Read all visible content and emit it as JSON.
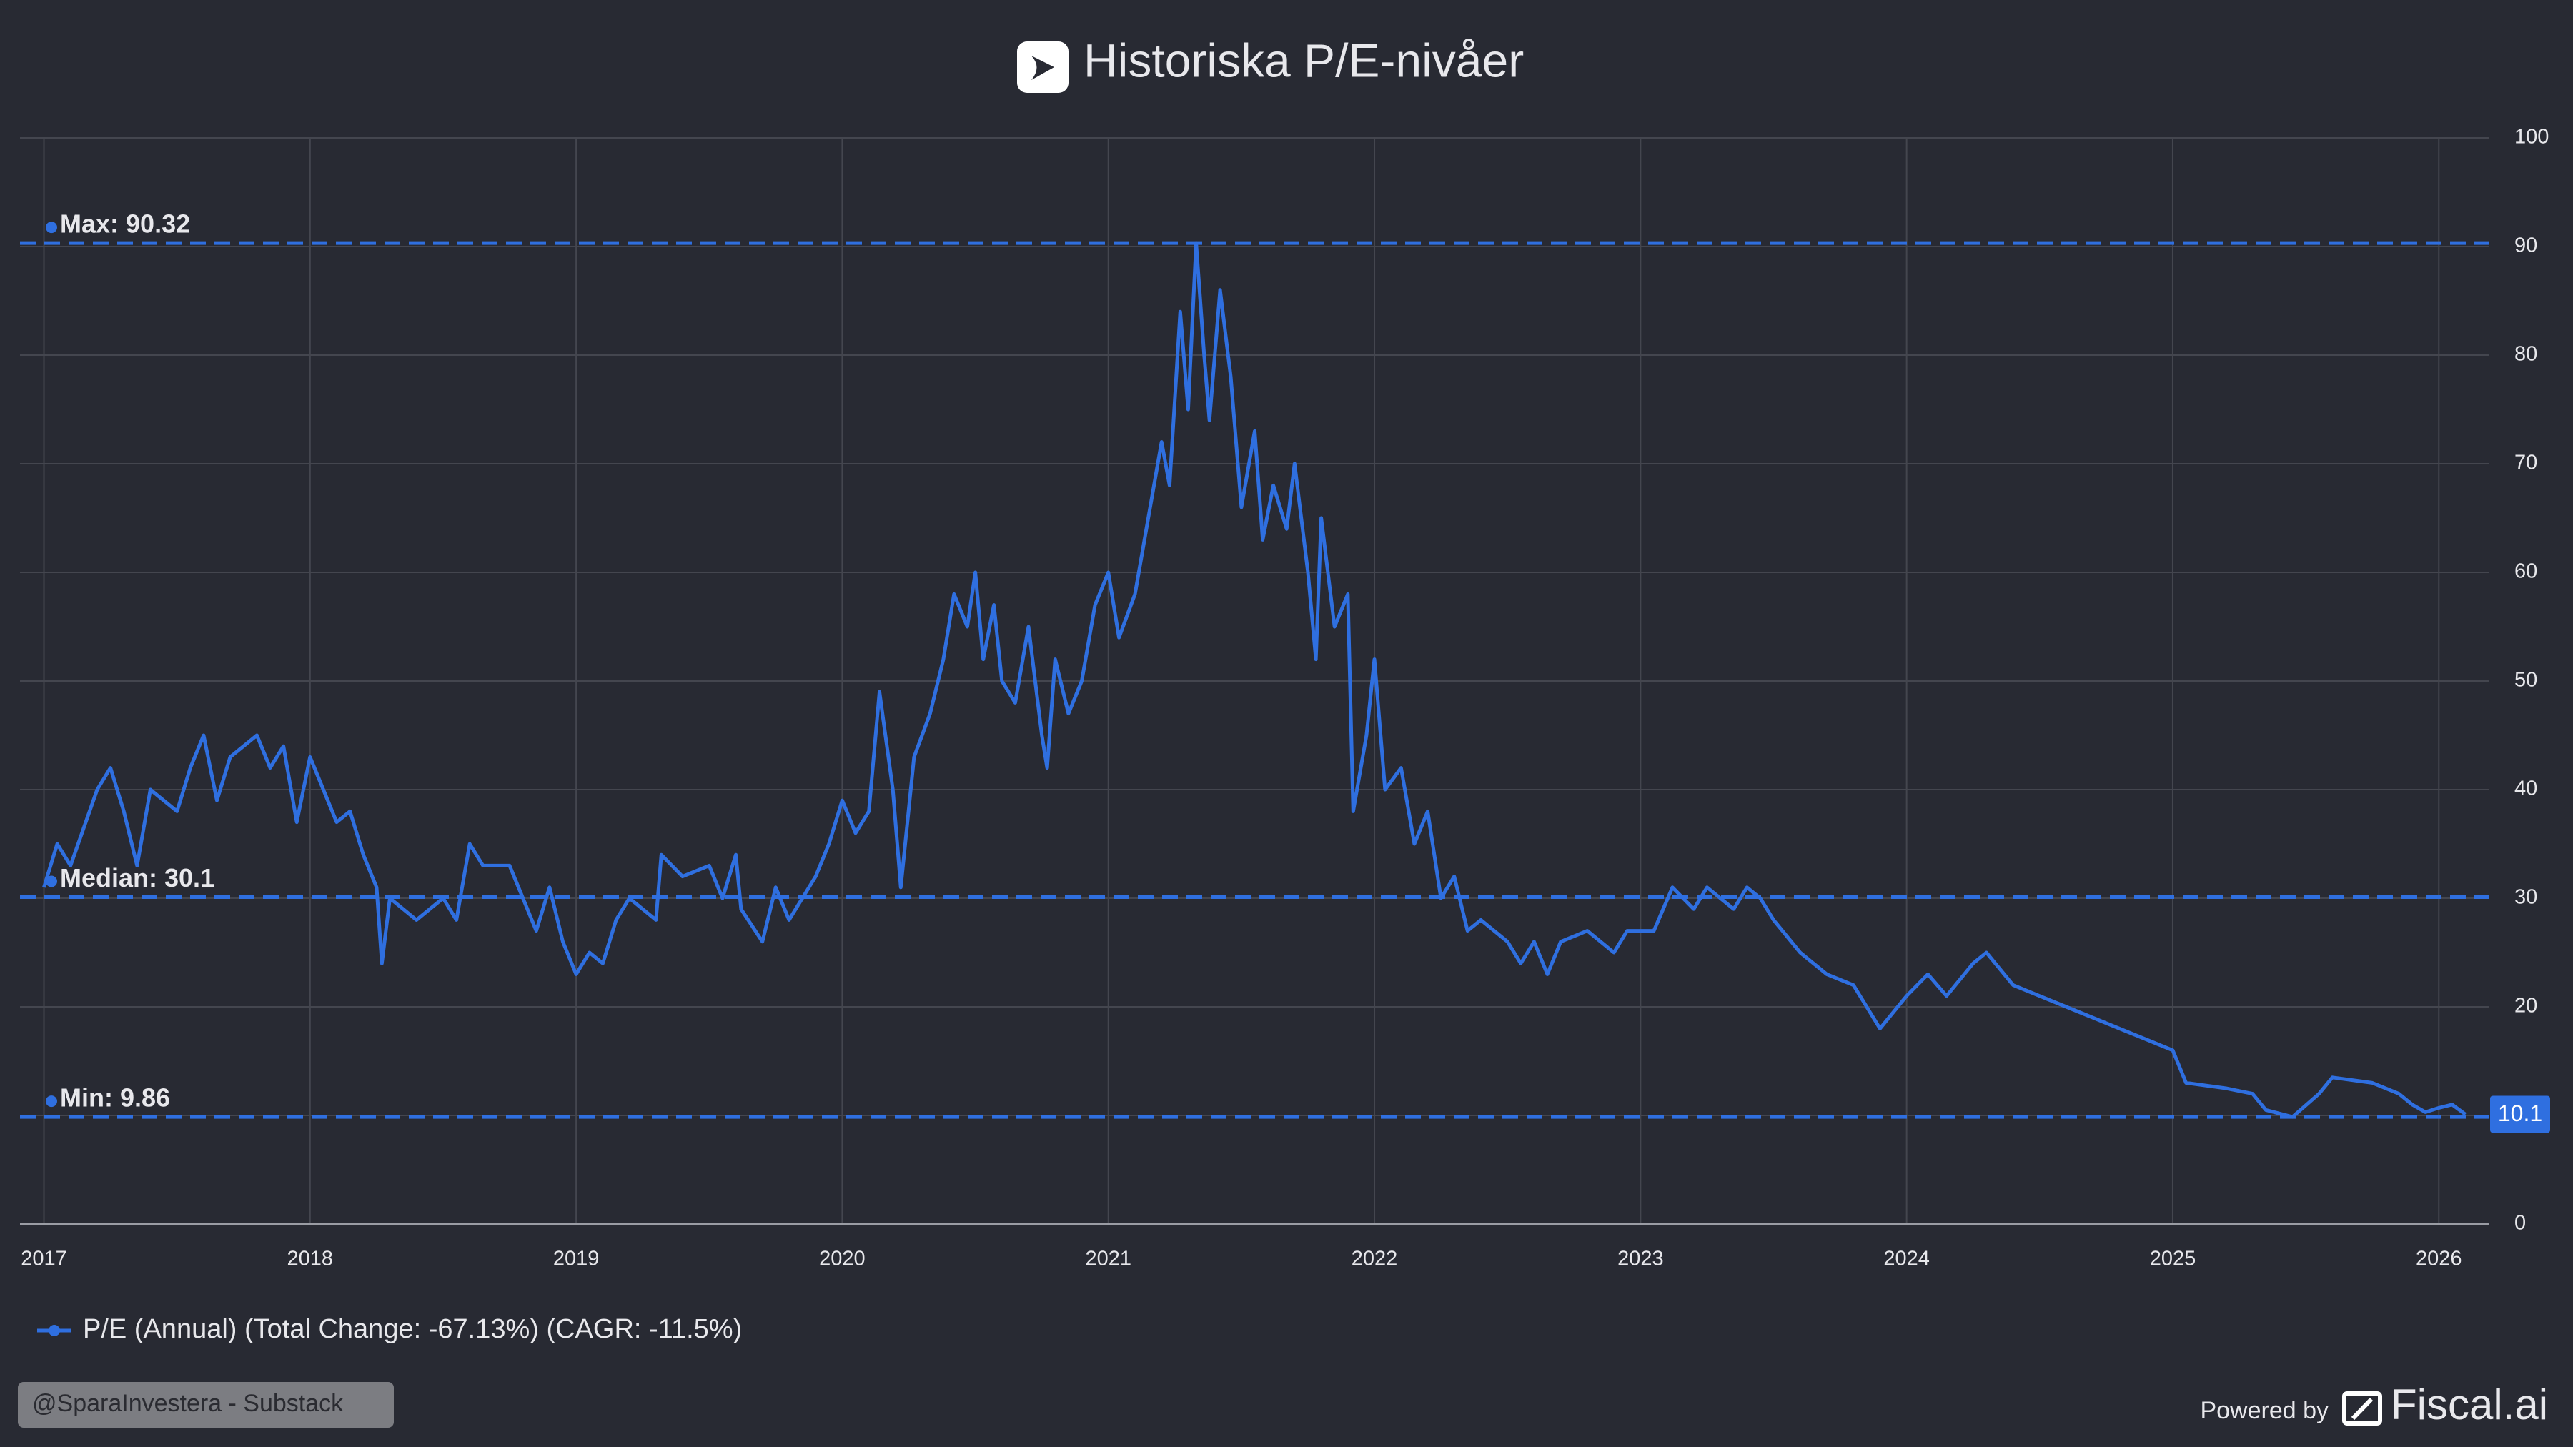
{
  "chart_data": {
    "type": "line",
    "title": "Historiska P/E-nivåer",
    "x": [
      2017.0,
      2017.05,
      2017.1,
      2017.2,
      2017.25,
      2017.3,
      2017.35,
      2017.4,
      2017.5,
      2017.55,
      2017.6,
      2017.65,
      2017.7,
      2017.8,
      2017.85,
      2017.9,
      2017.95,
      2018.0,
      2018.05,
      2018.1,
      2018.15,
      2018.2,
      2018.25,
      2018.27,
      2018.3,
      2018.4,
      2018.5,
      2018.55,
      2018.6,
      2018.65,
      2018.75,
      2018.8,
      2018.85,
      2018.9,
      2018.95,
      2019.0,
      2019.05,
      2019.1,
      2019.15,
      2019.2,
      2019.3,
      2019.32,
      2019.4,
      2019.5,
      2019.55,
      2019.6,
      2019.62,
      2019.7,
      2019.75,
      2019.8,
      2019.85,
      2019.9,
      2019.95,
      2020.0,
      2020.05,
      2020.1,
      2020.14,
      2020.19,
      2020.22,
      2020.27,
      2020.33,
      2020.38,
      2020.42,
      2020.47,
      2020.5,
      2020.53,
      2020.57,
      2020.6,
      2020.65,
      2020.7,
      2020.75,
      2020.77,
      2020.8,
      2020.85,
      2020.9,
      2020.95,
      2021.0,
      2021.04,
      2021.1,
      2021.15,
      2021.2,
      2021.23,
      2021.27,
      2021.3,
      2021.33,
      2021.36,
      2021.38,
      2021.42,
      2021.46,
      2021.5,
      2021.55,
      2021.58,
      2021.62,
      2021.67,
      2021.7,
      2021.75,
      2021.78,
      2021.8,
      2021.85,
      2021.9,
      2021.92,
      2021.97,
      2022.0,
      2022.04,
      2022.1,
      2022.15,
      2022.2,
      2022.25,
      2022.3,
      2022.35,
      2022.4,
      2022.5,
      2022.55,
      2022.6,
      2022.65,
      2022.7,
      2022.8,
      2022.9,
      2022.95,
      2023.05,
      2023.12,
      2023.2,
      2023.25,
      2023.35,
      2023.4,
      2023.45,
      2023.5,
      2023.6,
      2023.7,
      2023.8,
      2023.85,
      2023.9,
      2024.0,
      2024.08,
      2024.15,
      2024.25,
      2024.3,
      2024.4,
      2024.5,
      2024.6,
      2024.7,
      2024.8,
      2024.9,
      2025.0,
      2025.05,
      2025.2,
      2025.3,
      2025.35,
      2025.45,
      2025.55,
      2025.6,
      2025.75,
      2025.85,
      2025.9,
      2025.95,
      2026.0,
      2026.05,
      2026.1
    ],
    "series": [
      {
        "name": "P/E (Annual) (Total Change: -67.13%) (CAGR: -11.5%)",
        "color": "#2f6fe0",
        "values": [
          31,
          35,
          33,
          40,
          42,
          38,
          33,
          40,
          38,
          42,
          45,
          39,
          43,
          45,
          42,
          44,
          37,
          43,
          40,
          37,
          38,
          34,
          31,
          24,
          30,
          28,
          30,
          28,
          35,
          33,
          33,
          30,
          27,
          31,
          26,
          23,
          25,
          24,
          28,
          30,
          28,
          34,
          32,
          33,
          30,
          34,
          29,
          26,
          31,
          28,
          30,
          32,
          35,
          39,
          36,
          38,
          49,
          40,
          31,
          43,
          47,
          52,
          58,
          55,
          60,
          52,
          57,
          50,
          48,
          55,
          45,
          42,
          52,
          47,
          50,
          57,
          60,
          54,
          58,
          65,
          72,
          68,
          84,
          75,
          90.32,
          80,
          74,
          86,
          78,
          66,
          73,
          63,
          68,
          64,
          70,
          60,
          52,
          65,
          55,
          58,
          38,
          45,
          52,
          40,
          42,
          35,
          38,
          30,
          32,
          27,
          28,
          26,
          24,
          26,
          23,
          26,
          27,
          25,
          27,
          27,
          31,
          29,
          31,
          29,
          31,
          30,
          28,
          25,
          23,
          22,
          20,
          18,
          21,
          23,
          21,
          24,
          25,
          22,
          21,
          20,
          19,
          18,
          17,
          16,
          13,
          12.5,
          12,
          10.5,
          9.86,
          12,
          13.5,
          13,
          12,
          11,
          10.3,
          10.7,
          11,
          10.1
        ]
      }
    ],
    "reference_lines": [
      {
        "label": "Max: 90.32",
        "value": 90.32
      },
      {
        "label": "Median: 30.1",
        "value": 30.1
      },
      {
        "label": "Min: 9.86",
        "value": 9.86
      }
    ],
    "xlim": [
      2016.91,
      2026.19
    ],
    "xticks": [
      2017,
      2018,
      2019,
      2020,
      2021,
      2022,
      2023,
      2024,
      2025,
      2026
    ],
    "ylim": [
      0,
      100
    ],
    "yticks": [
      0,
      10,
      20,
      30,
      40,
      50,
      60,
      70,
      80,
      90,
      100
    ],
    "grid": true,
    "watermark": "@SparaInvestera - Substack",
    "credit": "Powered by",
    "brand": "Fiscal.ai"
  }
}
